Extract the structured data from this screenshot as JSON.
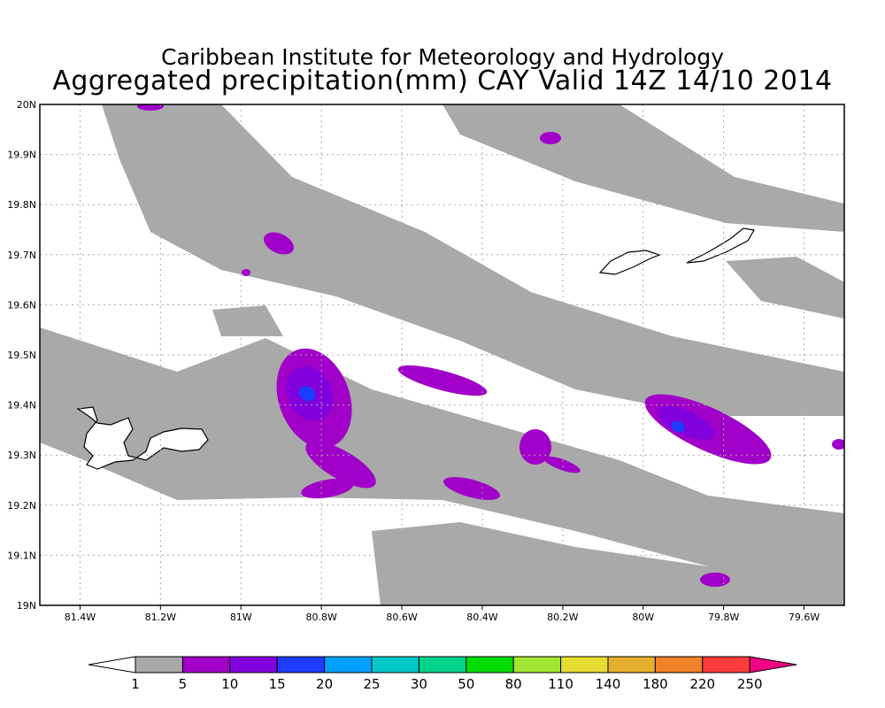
{
  "title": {
    "line1": "Caribbean Institute for Meteorology and Hydrology",
    "line2": "Aggregated precipitation(mm) CAY Valid 14Z 14/10 2014"
  },
  "chart_data": {
    "type": "heatmap",
    "title": "Aggregated precipitation(mm) CAY Valid 14Z 14/10 2014",
    "xlim": [
      -81.5,
      -79.5
    ],
    "ylim": [
      19.0,
      20.0
    ],
    "grid": true,
    "x_ticks": [
      {
        "value": -81.4,
        "label": "81.4W"
      },
      {
        "value": -81.2,
        "label": "81.2W"
      },
      {
        "value": -81.0,
        "label": "81W"
      },
      {
        "value": -80.8,
        "label": "80.8W"
      },
      {
        "value": -80.6,
        "label": "80.6W"
      },
      {
        "value": -80.4,
        "label": "80.4W"
      },
      {
        "value": -80.2,
        "label": "80.2W"
      },
      {
        "value": -80.0,
        "label": "80W"
      },
      {
        "value": -79.8,
        "label": "79.8W"
      },
      {
        "value": -79.6,
        "label": "79.6W"
      }
    ],
    "y_ticks": [
      {
        "value": 19.0,
        "label": "19N"
      },
      {
        "value": 19.1,
        "label": "19.1N"
      },
      {
        "value": 19.2,
        "label": "19.2N"
      },
      {
        "value": 19.3,
        "label": "19.3N"
      },
      {
        "value": 19.4,
        "label": "19.4N"
      },
      {
        "value": 19.5,
        "label": "19.5N"
      },
      {
        "value": 19.6,
        "label": "19.6N"
      },
      {
        "value": 19.7,
        "label": "19.7N"
      },
      {
        "value": 19.8,
        "label": "19.8N"
      },
      {
        "value": 19.9,
        "label": "19.9N"
      },
      {
        "value": 20.0,
        "label": "20N"
      }
    ],
    "colorbar": {
      "labels": [
        "1",
        "5",
        "10",
        "15",
        "20",
        "25",
        "30",
        "50",
        "80",
        "110",
        "140",
        "180",
        "220",
        "250"
      ],
      "colors": [
        "#ffffff",
        "#a9a9a9",
        "#a000c8",
        "#8200dc",
        "#1e3cff",
        "#00a0ff",
        "#00c8c8",
        "#00d28c",
        "#00dc00",
        "#a0e632",
        "#e6dc32",
        "#e6af2d",
        "#f08228",
        "#fa3c3c",
        "#f00082"
      ]
    },
    "max_observed_range": "15-20 mm"
  }
}
